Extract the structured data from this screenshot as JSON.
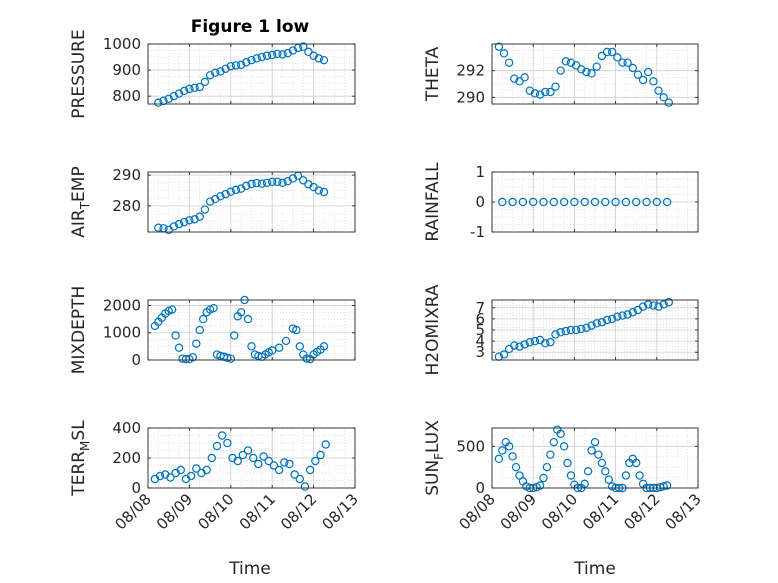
{
  "figure": {
    "title": "Figure 1 low",
    "xlabel": "Time",
    "marker_color": "#0072bd",
    "axis_color": "#262626",
    "grid_color": "#d9d9d9"
  },
  "chart_data": [
    {
      "type": "scatter",
      "ylabel": "PRESSURE",
      "ylim": [
        770,
        1000
      ],
      "yticks": [
        800,
        900,
        1000
      ],
      "xlim": [
        "08/08",
        "08/13"
      ],
      "xticks": [],
      "grid": true,
      "minor_grid": true,
      "x": [
        "08/08 06:00",
        "08/08 09:00",
        "08/08 12:00",
        "08/08 15:00",
        "08/08 18:00",
        "08/08 21:00",
        "08/09 00:00",
        "08/09 03:00",
        "08/09 06:00",
        "08/09 09:00",
        "08/09 12:00",
        "08/09 15:00",
        "08/09 18:00",
        "08/09 21:00",
        "08/10 00:00",
        "08/10 03:00",
        "08/10 06:00",
        "08/10 09:00",
        "08/10 12:00",
        "08/10 15:00",
        "08/10 18:00",
        "08/10 21:00",
        "08/11 00:00",
        "08/11 03:00",
        "08/11 06:00",
        "08/11 09:00",
        "08/11 12:00",
        "08/11 15:00",
        "08/11 18:00",
        "08/11 21:00",
        "08/12 00:00",
        "08/12 03:00",
        "08/12 06:00"
      ],
      "y": [
        775,
        782,
        790,
        800,
        810,
        820,
        828,
        832,
        835,
        855,
        880,
        890,
        895,
        905,
        915,
        918,
        920,
        930,
        938,
        945,
        950,
        955,
        958,
        962,
        960,
        965,
        975,
        985,
        990,
        970,
        955,
        945,
        938
      ]
    },
    {
      "type": "scatter",
      "ylabel": "THETA",
      "ylim": [
        289.5,
        294
      ],
      "yticks": [
        290,
        292
      ],
      "xlim": [
        "08/08",
        "08/13"
      ],
      "xticks": [],
      "grid": true,
      "minor_grid": true,
      "x": [
        "08/08 04:00",
        "08/08 07:00",
        "08/08 10:00",
        "08/08 13:00",
        "08/08 16:00",
        "08/08 19:00",
        "08/08 22:00",
        "08/09 01:00",
        "08/09 04:00",
        "08/09 07:00",
        "08/09 10:00",
        "08/09 13:00",
        "08/09 16:00",
        "08/09 19:00",
        "08/09 22:00",
        "08/10 01:00",
        "08/10 04:00",
        "08/10 07:00",
        "08/10 10:00",
        "08/10 13:00",
        "08/10 16:00",
        "08/10 19:00",
        "08/10 22:00",
        "08/11 01:00",
        "08/11 04:00",
        "08/11 07:00",
        "08/11 10:00",
        "08/11 13:00",
        "08/11 16:00",
        "08/11 19:00",
        "08/11 22:00",
        "08/12 01:00",
        "08/12 04:00",
        "08/12 07:00"
      ],
      "y": [
        293.8,
        293.3,
        292.6,
        291.4,
        291.2,
        291.5,
        290.5,
        290.3,
        290.2,
        290.4,
        290.4,
        290.8,
        292.0,
        292.7,
        292.6,
        292.4,
        292.1,
        291.9,
        291.8,
        292.3,
        293.1,
        293.4,
        293.4,
        293.0,
        292.6,
        292.6,
        292.2,
        291.7,
        291.3,
        291.9,
        291.2,
        290.5,
        290.0,
        289.6
      ]
    },
    {
      "type": "scatter",
      "ylabel": "AIR_TEMP",
      "ylim": [
        271.5,
        291
      ],
      "yticks": [
        280,
        290
      ],
      "xlim": [
        "08/08",
        "08/13"
      ],
      "xticks": [],
      "grid": true,
      "minor_grid": true,
      "x": [
        "08/08 06:00",
        "08/08 09:00",
        "08/08 12:00",
        "08/08 15:00",
        "08/08 18:00",
        "08/08 21:00",
        "08/09 00:00",
        "08/09 03:00",
        "08/09 06:00",
        "08/09 09:00",
        "08/09 12:00",
        "08/09 15:00",
        "08/09 18:00",
        "08/09 21:00",
        "08/10 00:00",
        "08/10 03:00",
        "08/10 06:00",
        "08/10 09:00",
        "08/10 12:00",
        "08/10 15:00",
        "08/10 18:00",
        "08/10 21:00",
        "08/11 00:00",
        "08/11 03:00",
        "08/11 06:00",
        "08/11 09:00",
        "08/11 12:00",
        "08/11 15:00",
        "08/11 18:00",
        "08/11 21:00",
        "08/12 00:00",
        "08/12 03:00",
        "08/12 06:00"
      ],
      "y": [
        272.9,
        272.7,
        272.2,
        273.3,
        274.1,
        274.7,
        275.3,
        275.6,
        276.5,
        278.8,
        281.4,
        282.2,
        283.1,
        283.8,
        284.6,
        285.2,
        285.6,
        286.5,
        287.1,
        287.4,
        287.2,
        287.5,
        287.8,
        287.8,
        287.5,
        288.0,
        288.9,
        289.8,
        288.3,
        287.0,
        286.1,
        285.0,
        284.5
      ]
    },
    {
      "type": "scatter",
      "ylabel": "RAINFALL",
      "ylim": [
        -1,
        1
      ],
      "yticks": [
        -1,
        0,
        1
      ],
      "xlim": [
        "08/08",
        "08/13"
      ],
      "xticks": [],
      "grid": true,
      "minor_grid": true,
      "x": [
        "08/08 06:00",
        "08/08 12:00",
        "08/08 18:00",
        "08/09 00:00",
        "08/09 06:00",
        "08/09 12:00",
        "08/09 18:00",
        "08/10 00:00",
        "08/10 06:00",
        "08/10 12:00",
        "08/10 18:00",
        "08/11 00:00",
        "08/11 06:00",
        "08/11 12:00",
        "08/11 18:00",
        "08/12 00:00",
        "08/12 06:00"
      ],
      "y": [
        0,
        0,
        0,
        0,
        0,
        0,
        0,
        0,
        0,
        0,
        0,
        0,
        0,
        0,
        0,
        0,
        0
      ]
    },
    {
      "type": "scatter",
      "ylabel": "MIXDEPTH",
      "ylim": [
        0,
        2200
      ],
      "yticks": [
        0,
        1000,
        2000
      ],
      "xlim": [
        "08/08",
        "08/13"
      ],
      "xticks": [],
      "grid": true,
      "minor_grid": true,
      "x": [
        "08/08 04:00",
        "08/08 06:00",
        "08/08 08:00",
        "08/08 10:00",
        "08/08 12:00",
        "08/08 14:00",
        "08/08 16:00",
        "08/08 18:00",
        "08/08 20:00",
        "08/08 22:00",
        "08/09 00:00",
        "08/09 02:00",
        "08/09 04:00",
        "08/09 06:00",
        "08/09 08:00",
        "08/09 10:00",
        "08/09 12:00",
        "08/09 14:00",
        "08/09 16:00",
        "08/09 18:00",
        "08/09 20:00",
        "08/09 22:00",
        "08/10 00:00",
        "08/10 02:00",
        "08/10 04:00",
        "08/10 06:00",
        "08/10 08:00",
        "08/10 10:00",
        "08/10 12:00",
        "08/10 14:00",
        "08/10 16:00",
        "08/10 18:00",
        "08/10 20:00",
        "08/10 22:00",
        "08/11 00:00",
        "08/11 04:00",
        "08/11 08:00",
        "08/11 12:00",
        "08/11 14:00",
        "08/11 16:00",
        "08/11 18:00",
        "08/11 20:00",
        "08/11 22:00",
        "08/12 00:00",
        "08/12 02:00",
        "08/12 04:00",
        "08/12 06:00"
      ],
      "y": [
        1250,
        1400,
        1550,
        1700,
        1800,
        1850,
        900,
        450,
        50,
        30,
        30,
        100,
        600,
        1100,
        1500,
        1750,
        1850,
        1900,
        200,
        150,
        120,
        80,
        50,
        900,
        1600,
        1750,
        2200,
        1500,
        500,
        200,
        150,
        120,
        200,
        280,
        350,
        450,
        700,
        1150,
        1100,
        500,
        200,
        50,
        30,
        200,
        300,
        380,
        500
      ]
    },
    {
      "type": "scatter",
      "ylabel": "H2OMIXRA",
      "ylim": [
        2.3,
        7.7
      ],
      "yticks": [
        3,
        4,
        5,
        6,
        7
      ],
      "xlim": [
        "08/08",
        "08/13"
      ],
      "xticks": [],
      "grid": true,
      "minor_grid": true,
      "x": [
        "08/08 04:00",
        "08/08 07:00",
        "08/08 10:00",
        "08/08 13:00",
        "08/08 16:00",
        "08/08 19:00",
        "08/08 22:00",
        "08/09 01:00",
        "08/09 04:00",
        "08/09 07:00",
        "08/09 10:00",
        "08/09 13:00",
        "08/09 16:00",
        "08/09 19:00",
        "08/09 22:00",
        "08/10 01:00",
        "08/10 04:00",
        "08/10 07:00",
        "08/10 10:00",
        "08/10 13:00",
        "08/10 16:00",
        "08/10 19:00",
        "08/10 22:00",
        "08/11 01:00",
        "08/11 04:00",
        "08/11 07:00",
        "08/11 10:00",
        "08/11 13:00",
        "08/11 16:00",
        "08/11 19:00",
        "08/11 22:00",
        "08/12 01:00",
        "08/12 04:00",
        "08/12 07:00"
      ],
      "y": [
        2.6,
        2.8,
        3.3,
        3.6,
        3.5,
        3.7,
        3.9,
        4.0,
        4.1,
        3.8,
        3.9,
        4.6,
        4.8,
        4.9,
        5.0,
        5.0,
        5.1,
        5.2,
        5.4,
        5.6,
        5.7,
        5.9,
        6.0,
        6.2,
        6.3,
        6.4,
        6.6,
        6.8,
        7.1,
        7.3,
        7.2,
        7.1,
        7.3,
        7.5
      ]
    },
    {
      "type": "scatter",
      "ylabel": "TERR_MSL",
      "ylim": [
        0,
        400
      ],
      "yticks": [
        0,
        200,
        400
      ],
      "xlim": [
        "08/08",
        "08/13"
      ],
      "xticks": [
        "08/08",
        "08/09",
        "08/10",
        "08/11",
        "08/12",
        "08/13"
      ],
      "grid": true,
      "minor_grid": true,
      "x": [
        "08/08 04:00",
        "08/08 07:00",
        "08/08 10:00",
        "08/08 13:00",
        "08/08 16:00",
        "08/08 19:00",
        "08/08 22:00",
        "08/09 01:00",
        "08/09 04:00",
        "08/09 07:00",
        "08/09 10:00",
        "08/09 13:00",
        "08/09 16:00",
        "08/09 19:00",
        "08/09 22:00",
        "08/10 01:00",
        "08/10 04:00",
        "08/10 07:00",
        "08/10 10:00",
        "08/10 13:00",
        "08/10 16:00",
        "08/10 19:00",
        "08/10 22:00",
        "08/11 01:00",
        "08/11 04:00",
        "08/11 07:00",
        "08/11 10:00",
        "08/11 13:00",
        "08/11 16:00",
        "08/11 19:00",
        "08/11 22:00",
        "08/12 01:00",
        "08/12 04:00",
        "08/12 07:00"
      ],
      "y": [
        60,
        80,
        90,
        70,
        100,
        120,
        60,
        80,
        130,
        100,
        120,
        200,
        280,
        350,
        300,
        200,
        180,
        220,
        250,
        200,
        160,
        210,
        180,
        150,
        120,
        170,
        160,
        90,
        60,
        10,
        120,
        180,
        220,
        290
      ]
    },
    {
      "type": "scatter",
      "ylabel": "SUN_FLUX",
      "ylim": [
        0,
        720
      ],
      "yticks": [
        0,
        500
      ],
      "xlim": [
        "08/08",
        "08/13"
      ],
      "xticks": [
        "08/08",
        "08/09",
        "08/10",
        "08/11",
        "08/12",
        "08/13"
      ],
      "grid": true,
      "minor_grid": true,
      "x": [
        "08/08 04:00",
        "08/08 06:00",
        "08/08 08:00",
        "08/08 10:00",
        "08/08 12:00",
        "08/08 14:00",
        "08/08 16:00",
        "08/08 18:00",
        "08/08 20:00",
        "08/08 22:00",
        "08/09 00:00",
        "08/09 02:00",
        "08/09 04:00",
        "08/09 06:00",
        "08/09 08:00",
        "08/09 10:00",
        "08/09 12:00",
        "08/09 14:00",
        "08/09 16:00",
        "08/09 18:00",
        "08/09 20:00",
        "08/09 22:00",
        "08/10 00:00",
        "08/10 02:00",
        "08/10 04:00",
        "08/10 06:00",
        "08/10 08:00",
        "08/10 10:00",
        "08/10 12:00",
        "08/10 14:00",
        "08/10 16:00",
        "08/10 18:00",
        "08/10 20:00",
        "08/10 22:00",
        "08/11 00:00",
        "08/11 02:00",
        "08/11 04:00",
        "08/11 06:00",
        "08/11 08:00",
        "08/11 10:00",
        "08/11 12:00",
        "08/11 14:00",
        "08/11 16:00",
        "08/11 18:00",
        "08/11 20:00",
        "08/11 22:00",
        "08/12 00:00",
        "08/12 02:00",
        "08/12 04:00",
        "08/12 06:00"
      ],
      "y": [
        350,
        450,
        550,
        500,
        380,
        250,
        150,
        80,
        20,
        0,
        0,
        10,
        30,
        120,
        250,
        400,
        550,
        700,
        650,
        500,
        300,
        150,
        40,
        0,
        0,
        50,
        200,
        450,
        550,
        400,
        300,
        200,
        100,
        20,
        0,
        0,
        0,
        150,
        300,
        350,
        300,
        150,
        50,
        0,
        0,
        0,
        0,
        10,
        20,
        30
      ]
    }
  ]
}
